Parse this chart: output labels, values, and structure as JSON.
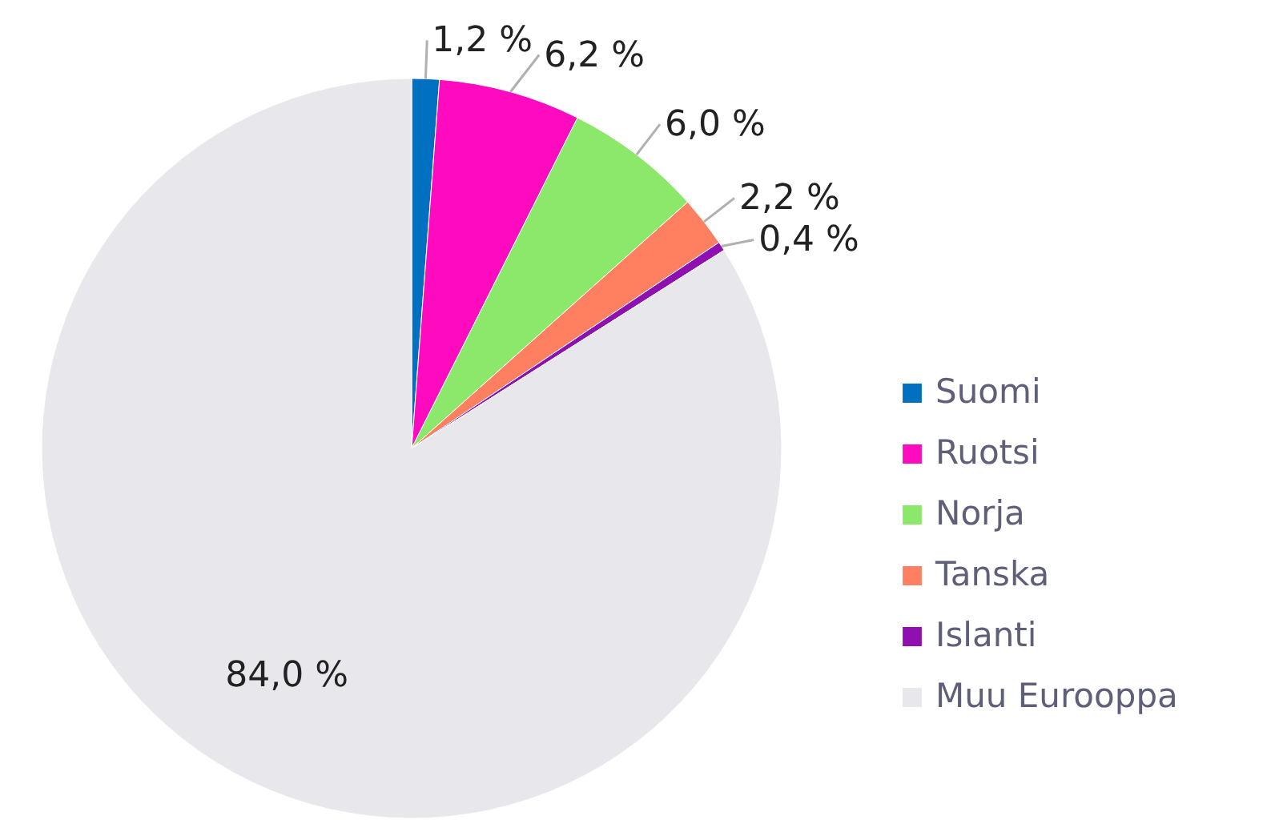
{
  "chart_data": {
    "type": "pie",
    "categories": [
      "Suomi",
      "Ruotsi",
      "Norja",
      "Tanska",
      "Islanti",
      "Muu Eurooppa"
    ],
    "values": [
      1.2,
      6.2,
      6.0,
      2.2,
      0.4,
      84.0
    ],
    "colors": [
      "#0070c0",
      "#ff0bbf",
      "#8ce86a",
      "#ff8060",
      "#8e10b0",
      "#e8e8ec"
    ],
    "value_labels": [
      "1,2 %",
      "6,2 %",
      "6,0 %",
      "2,2 %",
      "0,4 %",
      "84,0 %"
    ],
    "legend": "right"
  }
}
